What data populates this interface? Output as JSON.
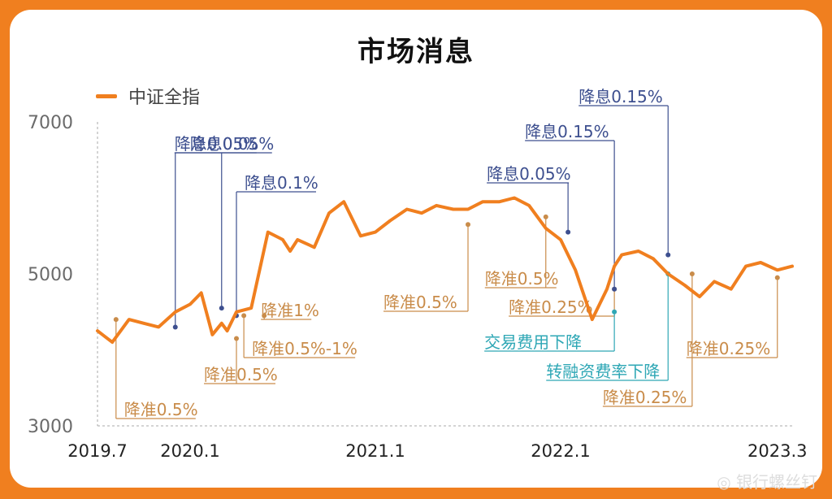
{
  "title": "市场消息",
  "legend": "中证全指",
  "watermark": "银行螺丝钉",
  "colors": {
    "line": "#f07f1f",
    "cut_rate": "#3d4f8f",
    "cut_rrr": "#c98c4a",
    "other_policy": "#2ea7b5",
    "background": "#f07f1f"
  },
  "chart_data": {
    "type": "line",
    "title": "",
    "xlabel": "",
    "ylabel": "",
    "ylim": [
      3000,
      7000
    ],
    "y_ticks": [
      "7000",
      "5000",
      "3000"
    ],
    "y_tick_values": [
      7000,
      5000,
      3000
    ],
    "x_ticks": [
      "2019.7",
      "2020.1",
      "2021.1",
      "2022.1",
      "2023.3"
    ],
    "x_tick_values": [
      2019.5,
      2020.0,
      2021.0,
      2022.0,
      2023.17
    ],
    "x_range": [
      2019.5,
      2023.25
    ],
    "series": [
      {
        "name": "中证全指",
        "x": [
          2019.5,
          2019.58,
          2019.67,
          2019.75,
          2019.83,
          2019.92,
          2020.0,
          2020.06,
          2020.12,
          2020.17,
          2020.2,
          2020.25,
          2020.33,
          2020.42,
          2020.5,
          2020.54,
          2020.58,
          2020.67,
          2020.75,
          2020.83,
          2020.92,
          2021.0,
          2021.08,
          2021.17,
          2021.25,
          2021.33,
          2021.42,
          2021.5,
          2021.58,
          2021.67,
          2021.75,
          2021.83,
          2021.92,
          2022.0,
          2022.08,
          2022.17,
          2022.25,
          2022.29,
          2022.33,
          2022.42,
          2022.5,
          2022.58,
          2022.67,
          2022.75,
          2022.83,
          2022.92,
          2023.0,
          2023.08,
          2023.17,
          2023.25
        ],
        "values": [
          4250,
          4100,
          4400,
          4350,
          4300,
          4500,
          4600,
          4750,
          4200,
          4350,
          4250,
          4500,
          4550,
          5550,
          5450,
          5300,
          5450,
          5350,
          5800,
          5950,
          5500,
          5550,
          5700,
          5850,
          5800,
          5900,
          5850,
          5850,
          5950,
          5950,
          6000,
          5900,
          5600,
          5450,
          5050,
          4400,
          4800,
          5100,
          5250,
          5300,
          5200,
          5000,
          4850,
          4700,
          4900,
          4800,
          5100,
          5150,
          5050,
          5100
        ]
      }
    ],
    "annotations": [
      {
        "label": "降准0.5%",
        "type": "rrr",
        "x": 2019.6,
        "value": 4400
      },
      {
        "label": "降息0.05%",
        "type": "rate",
        "x": 2019.92,
        "value": 4300
      },
      {
        "label": "降息0.05%",
        "type": "rate",
        "x": 2020.17,
        "value": 4550
      },
      {
        "label": "降准0.5%",
        "type": "rrr",
        "x": 2020.25,
        "value": 4150
      },
      {
        "label": "降息0.1%",
        "type": "rate",
        "x": 2020.25,
        "value": 4450
      },
      {
        "label": "降准0.5%-1%",
        "type": "rrr",
        "x": 2020.29,
        "value": 4450
      },
      {
        "label": "降准1%",
        "type": "rrr",
        "x": 2020.4,
        "value": 4450
      },
      {
        "label": "降准0.5%",
        "type": "rrr",
        "x": 2021.5,
        "value": 5650
      },
      {
        "label": "降准0.5%",
        "type": "rrr",
        "x": 2021.92,
        "value": 5750
      },
      {
        "label": "降息0.05%",
        "type": "rate",
        "x": 2022.04,
        "value": 5550
      },
      {
        "label": "降准0.25%",
        "type": "rrr",
        "x": 2022.29,
        "value": 4800
      },
      {
        "label": "降息0.15%",
        "type": "rate",
        "x": 2022.29,
        "value": 4800
      },
      {
        "label": "交易费用下降",
        "type": "policy",
        "x": 2022.29,
        "value": 4500
      },
      {
        "label": "转融资费率下降",
        "type": "policy",
        "x": 2022.58,
        "value": 5000
      },
      {
        "label": "降息0.15%",
        "type": "rate",
        "x": 2022.58,
        "value": 5250
      },
      {
        "label": "降准0.25%",
        "type": "rrr",
        "x": 2022.71,
        "value": 5000
      },
      {
        "label": "降准0.25%",
        "type": "rrr",
        "x": 2023.17,
        "value": 4950
      }
    ]
  }
}
